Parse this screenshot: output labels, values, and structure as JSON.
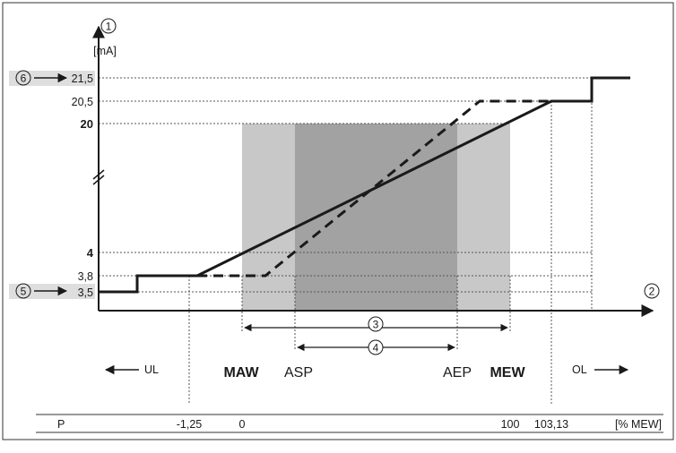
{
  "axes": {
    "y_marker": "1",
    "x_marker": "2",
    "y_unit": "[mA]",
    "y_ticks": [
      {
        "label": "21,5",
        "bold": false,
        "value": 21.5
      },
      {
        "label": "20,5",
        "bold": false,
        "value": 20.5
      },
      {
        "label": "20",
        "bold": true,
        "value": 20
      },
      {
        "label": "4",
        "bold": true,
        "value": 4
      },
      {
        "label": "3,8",
        "bold": false,
        "value": 3.8
      },
      {
        "label": "3,5",
        "bold": false,
        "value": 3.5
      }
    ]
  },
  "callouts": [
    {
      "marker": "6",
      "target": "21,5"
    },
    {
      "marker": "5",
      "target": "3,5"
    }
  ],
  "ranges": [
    {
      "marker": "3",
      "from": "MAW",
      "to": "MEW"
    },
    {
      "marker": "4",
      "from": "ASP",
      "to": "AEP"
    }
  ],
  "point_labels": {
    "maw": "MAW",
    "asp": "ASP",
    "aep": "AEP",
    "mew": "MEW",
    "ul": "UL",
    "ol": "OL"
  },
  "scale_row": {
    "parameter": "P",
    "values": [
      "-1,25",
      "0",
      "100",
      "103,13"
    ],
    "unit": "[% MEW]"
  },
  "colors": {
    "outer_shade": "#c8c8c8",
    "inner_shade": "#a2a2a2",
    "highlight_bg": "#dedede",
    "line": "#1a1a1a"
  },
  "series": [
    {
      "style": "solid",
      "description": "output curve"
    },
    {
      "style": "dashed",
      "description": "output curve"
    }
  ]
}
